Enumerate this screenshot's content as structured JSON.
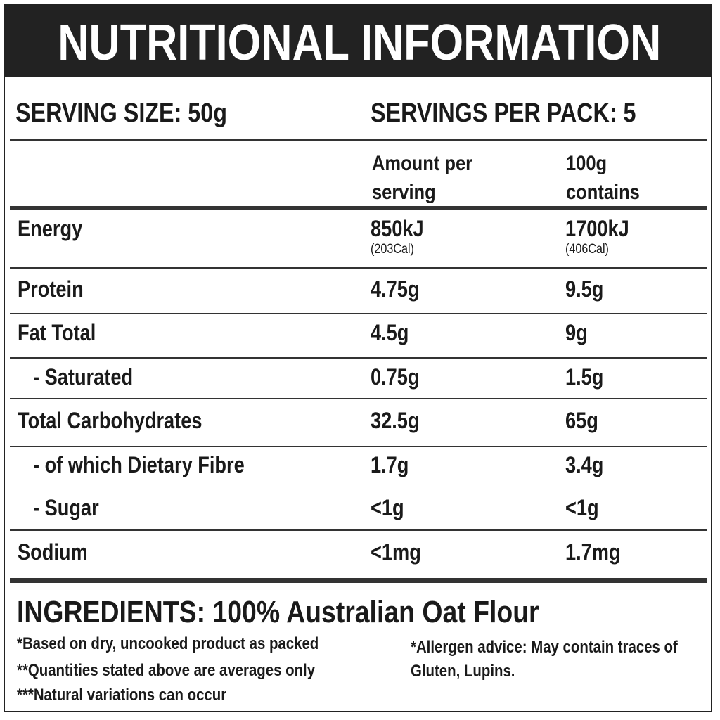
{
  "title": "NUTRITIONAL  INFORMATION",
  "serving_size": "SERVING SIZE: 50g",
  "servings_per_pack": "SERVINGS PER PACK: 5",
  "table": {
    "header": [
      "Amount per serving",
      "100g contains"
    ],
    "rows": [
      {
        "name": "Energy",
        "per_serving": "850kJ",
        "per_serving_note": "(203Cal)",
        "per_100g": "1700kJ",
        "per_100g_note": "(406Cal)"
      },
      {
        "name": "Protein",
        "per_serving": "4.75g",
        "per_100g": "9.5g"
      },
      {
        "name": "Fat Total",
        "per_serving": "4.5g",
        "per_100g": "9g"
      },
      {
        "name": "- Saturated",
        "per_serving": "0.75g",
        "per_100g": "1.5g"
      },
      {
        "name": "Total Carbohydrates",
        "per_serving": "32.5g",
        "per_100g": "65g"
      },
      {
        "name": "- of which Dietary Fibre",
        "per_serving": "1.7g",
        "per_100g": "3.4g"
      },
      {
        "name": "- Sugar",
        "per_serving": "<1g",
        "per_100g": "<1g"
      },
      {
        "name": "Sodium",
        "per_serving": "<1mg",
        "per_100g": "1.7mg"
      }
    ]
  },
  "ingredients": "INGREDIENTS: 100% Australian Oat Flour",
  "notes": [
    "*Based on dry, uncooked product as packed",
    "**Quantities stated above are averages only",
    "***Natural variations can occur"
  ],
  "allergen": "*Allergen advice: May contain traces of Gluten, Lupins."
}
